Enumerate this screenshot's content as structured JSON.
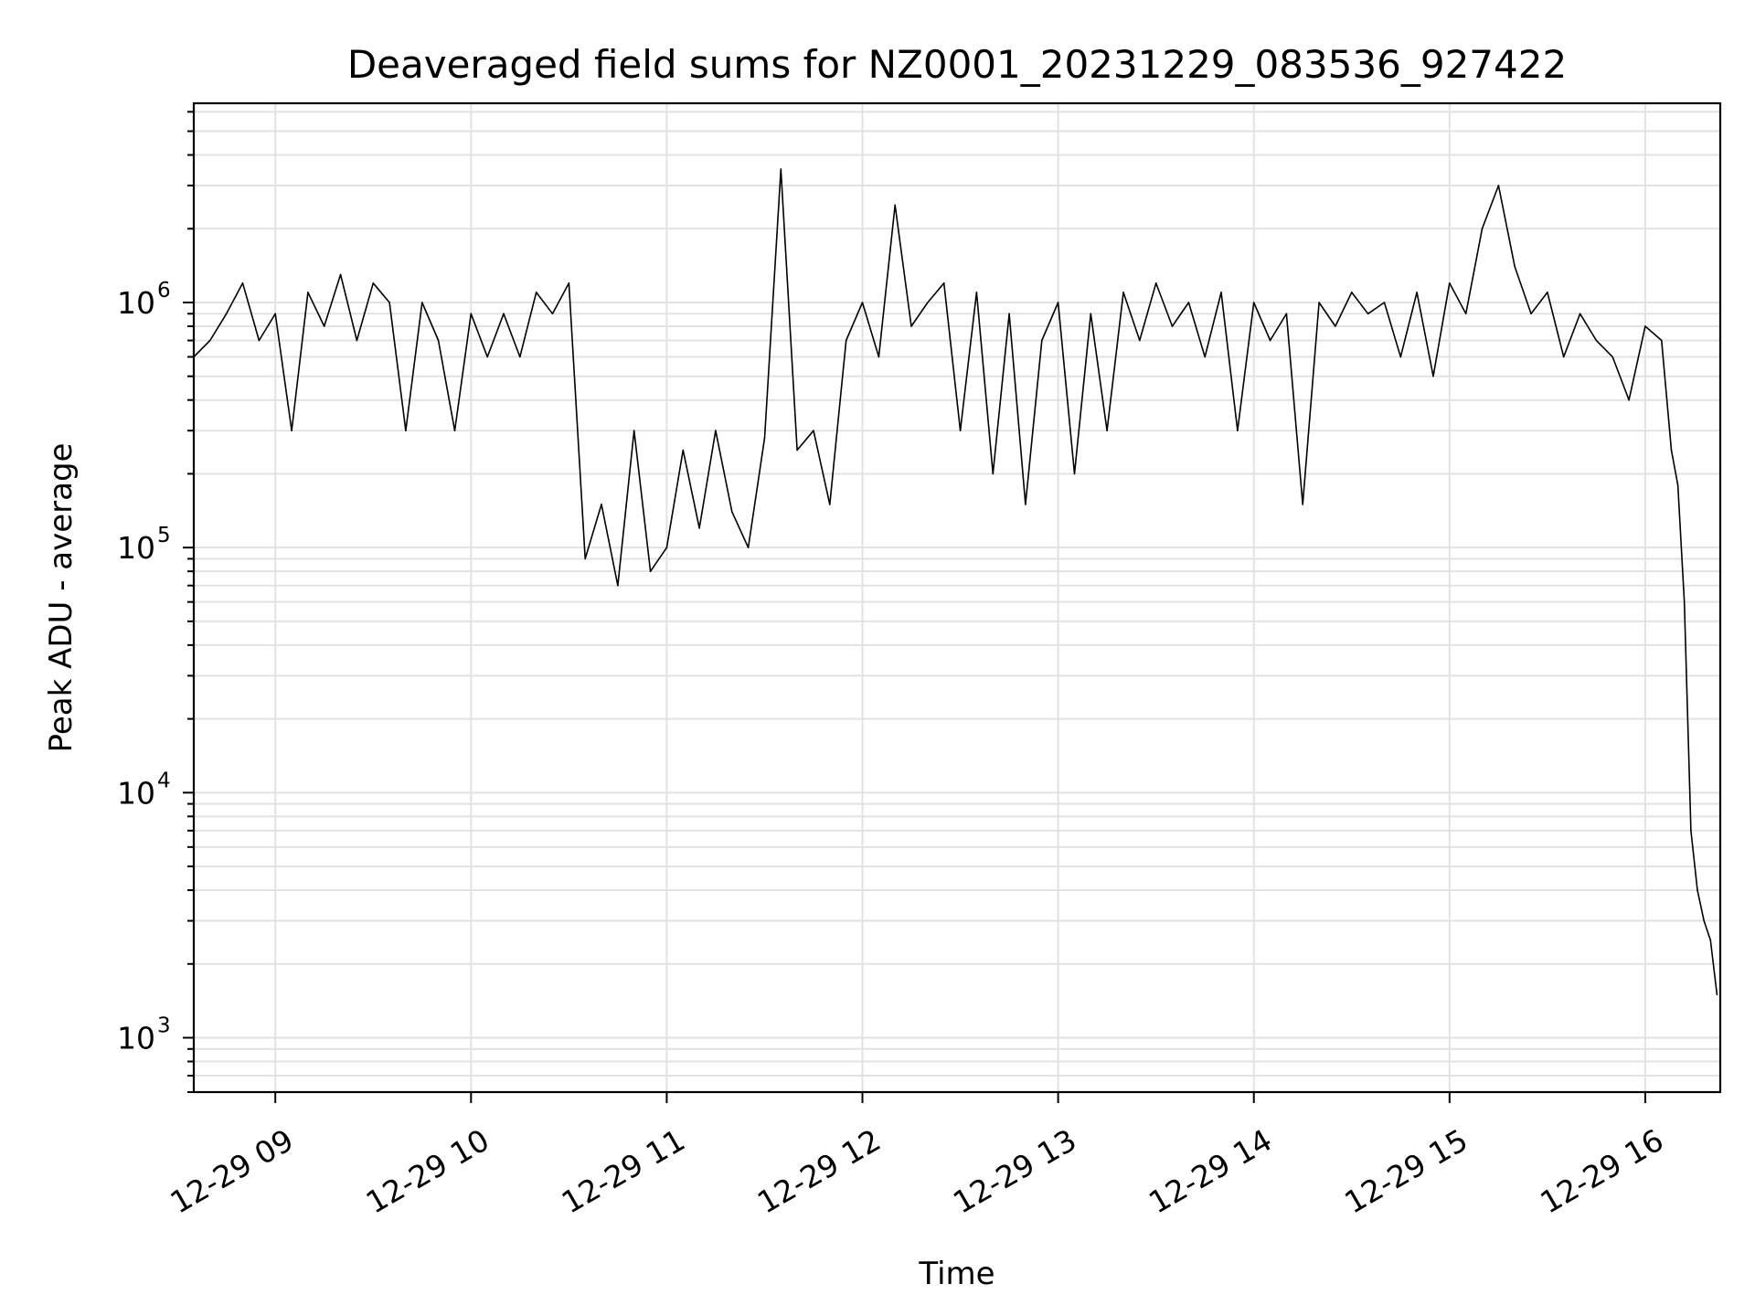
{
  "chart_data": {
    "type": "line",
    "title": "Deaveraged field sums for NZ0001_20231229_083536_927422",
    "xlabel": "Time",
    "ylabel": "Peak ADU - average",
    "yscale": "log",
    "ylim": [
      600,
      6500000
    ],
    "xlim": [
      "2023-12-29 08:35",
      "2023-12-29 16:23"
    ],
    "x_tick_labels": [
      "12-29 09",
      "12-29 10",
      "12-29 11",
      "12-29 12",
      "12-29 13",
      "12-29 14",
      "12-29 15",
      "12-29 16"
    ],
    "x_ticks": [
      "2023-12-29 09:00",
      "2023-12-29 10:00",
      "2023-12-29 11:00",
      "2023-12-29 12:00",
      "2023-12-29 13:00",
      "2023-12-29 14:00",
      "2023-12-29 15:00",
      "2023-12-29 16:00"
    ],
    "y_ticks": [
      {
        "value": 1000,
        "base": "10",
        "exp": "3"
      },
      {
        "value": 10000,
        "base": "10",
        "exp": "4"
      },
      {
        "value": 100000,
        "base": "10",
        "exp": "5"
      },
      {
        "value": 1000000,
        "base": "10",
        "exp": "6"
      }
    ],
    "grid": true,
    "line_color": "#000000",
    "grid_color": "#e2e2e2",
    "series": [
      {
        "name": "",
        "x": [
          "2023-12-29 08:35",
          "2023-12-29 08:40",
          "2023-12-29 08:45",
          "2023-12-29 08:50",
          "2023-12-29 08:55",
          "2023-12-29 09:00",
          "2023-12-29 09:05",
          "2023-12-29 09:10",
          "2023-12-29 09:15",
          "2023-12-29 09:20",
          "2023-12-29 09:25",
          "2023-12-29 09:30",
          "2023-12-29 09:35",
          "2023-12-29 09:40",
          "2023-12-29 09:45",
          "2023-12-29 09:50",
          "2023-12-29 09:55",
          "2023-12-29 10:00",
          "2023-12-29 10:05",
          "2023-12-29 10:10",
          "2023-12-29 10:15",
          "2023-12-29 10:20",
          "2023-12-29 10:25",
          "2023-12-29 10:30",
          "2023-12-29 10:35",
          "2023-12-29 10:40",
          "2023-12-29 10:45",
          "2023-12-29 10:50",
          "2023-12-29 10:55",
          "2023-12-29 11:00",
          "2023-12-29 11:05",
          "2023-12-29 11:10",
          "2023-12-29 11:15",
          "2023-12-29 11:20",
          "2023-12-29 11:25",
          "2023-12-29 11:30",
          "2023-12-29 11:35",
          "2023-12-29 11:40",
          "2023-12-29 11:45",
          "2023-12-29 11:50",
          "2023-12-29 11:55",
          "2023-12-29 12:00",
          "2023-12-29 12:05",
          "2023-12-29 12:10",
          "2023-12-29 12:15",
          "2023-12-29 12:20",
          "2023-12-29 12:25",
          "2023-12-29 12:30",
          "2023-12-29 12:35",
          "2023-12-29 12:40",
          "2023-12-29 12:45",
          "2023-12-29 12:50",
          "2023-12-29 12:55",
          "2023-12-29 13:00",
          "2023-12-29 13:05",
          "2023-12-29 13:10",
          "2023-12-29 13:15",
          "2023-12-29 13:20",
          "2023-12-29 13:25",
          "2023-12-29 13:30",
          "2023-12-29 13:35",
          "2023-12-29 13:40",
          "2023-12-29 13:45",
          "2023-12-29 13:50",
          "2023-12-29 13:55",
          "2023-12-29 14:00",
          "2023-12-29 14:05",
          "2023-12-29 14:10",
          "2023-12-29 14:15",
          "2023-12-29 14:20",
          "2023-12-29 14:25",
          "2023-12-29 14:30",
          "2023-12-29 14:35",
          "2023-12-29 14:40",
          "2023-12-29 14:45",
          "2023-12-29 14:50",
          "2023-12-29 14:55",
          "2023-12-29 15:00",
          "2023-12-29 15:05",
          "2023-12-29 15:10",
          "2023-12-29 15:15",
          "2023-12-29 15:20",
          "2023-12-29 15:25",
          "2023-12-29 15:30",
          "2023-12-29 15:35",
          "2023-12-29 15:40",
          "2023-12-29 15:45",
          "2023-12-29 15:50",
          "2023-12-29 15:55",
          "2023-12-29 16:00",
          "2023-12-29 16:05",
          "2023-12-29 16:08",
          "2023-12-29 16:10",
          "2023-12-29 16:12",
          "2023-12-29 16:14",
          "2023-12-29 16:16",
          "2023-12-29 16:18",
          "2023-12-29 16:20",
          "2023-12-29 16:22"
        ],
        "values": [
          600000,
          700000,
          900000,
          1200000,
          700000,
          900000,
          300000,
          1100000,
          800000,
          1300000,
          700000,
          1200000,
          1000000,
          300000,
          1000000,
          700000,
          300000,
          900000,
          600000,
          900000,
          600000,
          1100000,
          900000,
          1200000,
          90000,
          150000,
          70000,
          300000,
          80000,
          100000,
          250000,
          120000,
          300000,
          140000,
          100000,
          280000,
          3500000,
          250000,
          300000,
          150000,
          700000,
          1000000,
          600000,
          2500000,
          800000,
          1000000,
          1200000,
          300000,
          1100000,
          200000,
          900000,
          150000,
          700000,
          1000000,
          200000,
          900000,
          300000,
          1100000,
          700000,
          1200000,
          800000,
          1000000,
          600000,
          1100000,
          300000,
          1000000,
          700000,
          900000,
          150000,
          1000000,
          800000,
          1100000,
          900000,
          1000000,
          600000,
          1100000,
          500000,
          1200000,
          900000,
          2000000,
          3000000,
          1400000,
          900000,
          1100000,
          600000,
          900000,
          700000,
          600000,
          400000,
          800000,
          700000,
          250000,
          180000,
          60000,
          7000,
          4000,
          3000,
          2500,
          1500
        ]
      }
    ]
  }
}
